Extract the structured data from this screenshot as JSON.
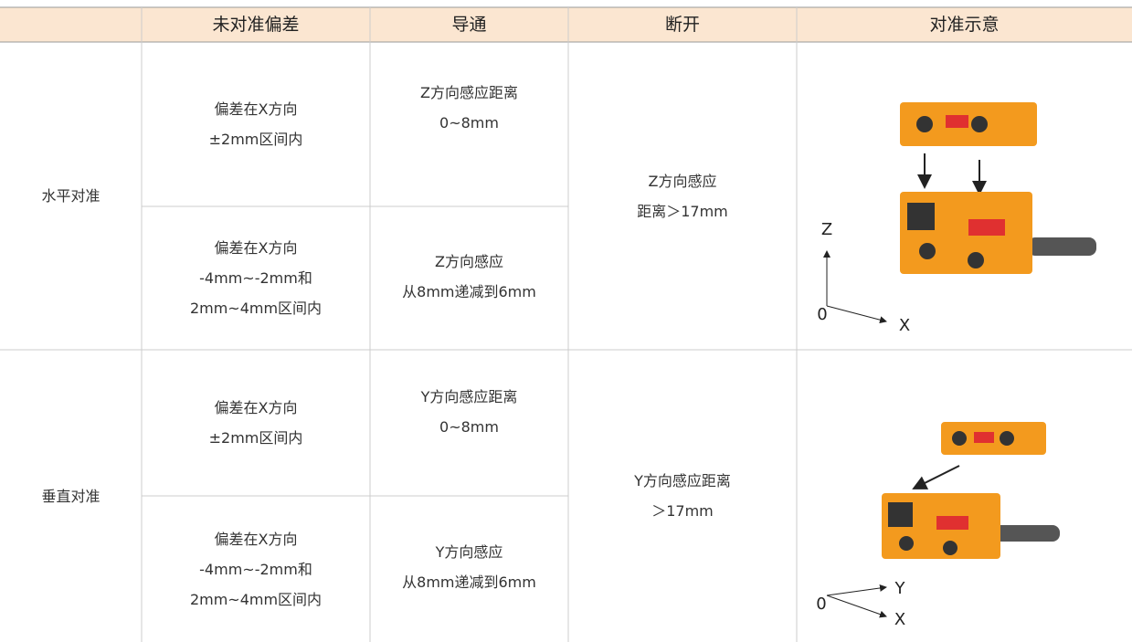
{
  "table": {
    "header": [
      "未对准偏差",
      "导通",
      "断开",
      "对准示意"
    ],
    "groups": [
      {
        "label": "水平对准",
        "rows": [
          {
            "deviation": [
              "偏差在X方向",
              "±2mm区间内"
            ],
            "conduction": [
              "Z方向感应距离",
              "0~8mm"
            ]
          },
          {
            "deviation": [
              "偏差在X方向",
              "-4mm~-2mm和",
              "2mm~4mm区间内"
            ],
            "conduction": [
              "Z方向感应",
              "从8mm递减到6mm"
            ]
          }
        ],
        "disconnect": [
          "Z方向感应",
          "距离＞17mm"
        ],
        "diagram": {
          "axes": [
            "Z",
            "0",
            "X"
          ]
        }
      },
      {
        "label": "垂直对准",
        "rows": [
          {
            "deviation": [
              "偏差在X方向",
              "±2mm区间内"
            ],
            "conduction": [
              "Y方向感应距离",
              "0~8mm"
            ]
          },
          {
            "deviation": [
              "偏差在X方向",
              "-4mm~-2mm和",
              "2mm~4mm区间内"
            ],
            "conduction": [
              "Y方向感应",
              "从8mm递减到6mm"
            ]
          }
        ],
        "disconnect": [
          "Y方向感应距离",
          "＞17mm"
        ],
        "diagram": {
          "axes": [
            "0",
            "Y",
            "X"
          ]
        }
      }
    ]
  }
}
